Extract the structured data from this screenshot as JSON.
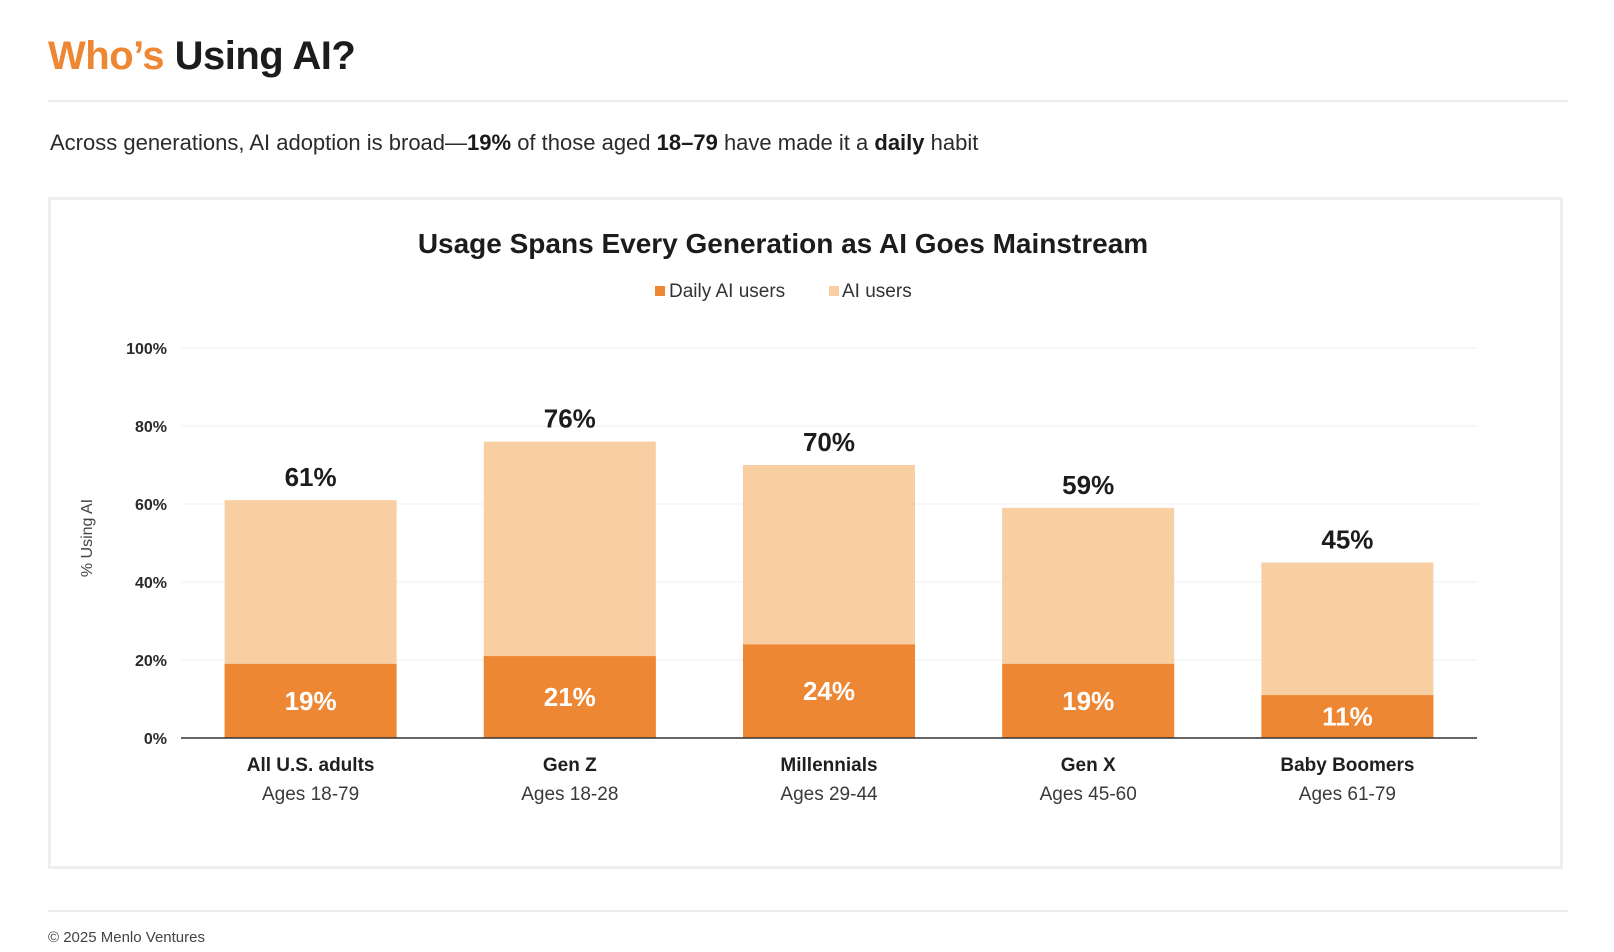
{
  "page": {
    "title_accent": "Who’s",
    "title_rest": " Using AI?",
    "subtitle": {
      "t1": "Across generations, AI adoption is broad—",
      "b1": "19%",
      "t2": " of those aged ",
      "b2": "18–79",
      "t3": " have made it a ",
      "b3": "daily",
      "t4": " habit"
    },
    "footer": "© 2025 Menlo Ventures"
  },
  "colors": {
    "accent": "#ee8733",
    "daily": "#ee8733",
    "users": "#f7cfa2",
    "grid": "#efefef",
    "axis": "#333333"
  },
  "chart_data": {
    "type": "bar",
    "stacked": false,
    "overlaid": true,
    "title": "Usage Spans Every Generation as AI Goes Mainstream",
    "ylabel": "% Using AI",
    "xlabel": "",
    "ylim": [
      0,
      100
    ],
    "yticks": [
      0,
      20,
      40,
      60,
      80,
      100
    ],
    "ytick_labels": [
      "0%",
      "20%",
      "40%",
      "60%",
      "80%",
      "100%"
    ],
    "grid": true,
    "legend": "top-center",
    "categories": [
      {
        "name": "All U.S. adults",
        "sub": "Ages 18-79"
      },
      {
        "name": "Gen Z",
        "sub": "Ages 18-28"
      },
      {
        "name": "Millennials",
        "sub": "Ages 29-44"
      },
      {
        "name": "Gen X",
        "sub": "Ages 45-60"
      },
      {
        "name": "Baby Boomers",
        "sub": "Ages 61-79"
      }
    ],
    "series": [
      {
        "name": "Daily AI users",
        "color": "#ee8733",
        "values": [
          19,
          21,
          24,
          19,
          11
        ],
        "labels": [
          "19%",
          "21%",
          "24%",
          "19%",
          "11%"
        ]
      },
      {
        "name": "AI users",
        "color": "#f7cfa2",
        "values": [
          61,
          76,
          70,
          59,
          45
        ],
        "labels": [
          "61%",
          "76%",
          "70%",
          "59%",
          "45%"
        ]
      }
    ]
  }
}
